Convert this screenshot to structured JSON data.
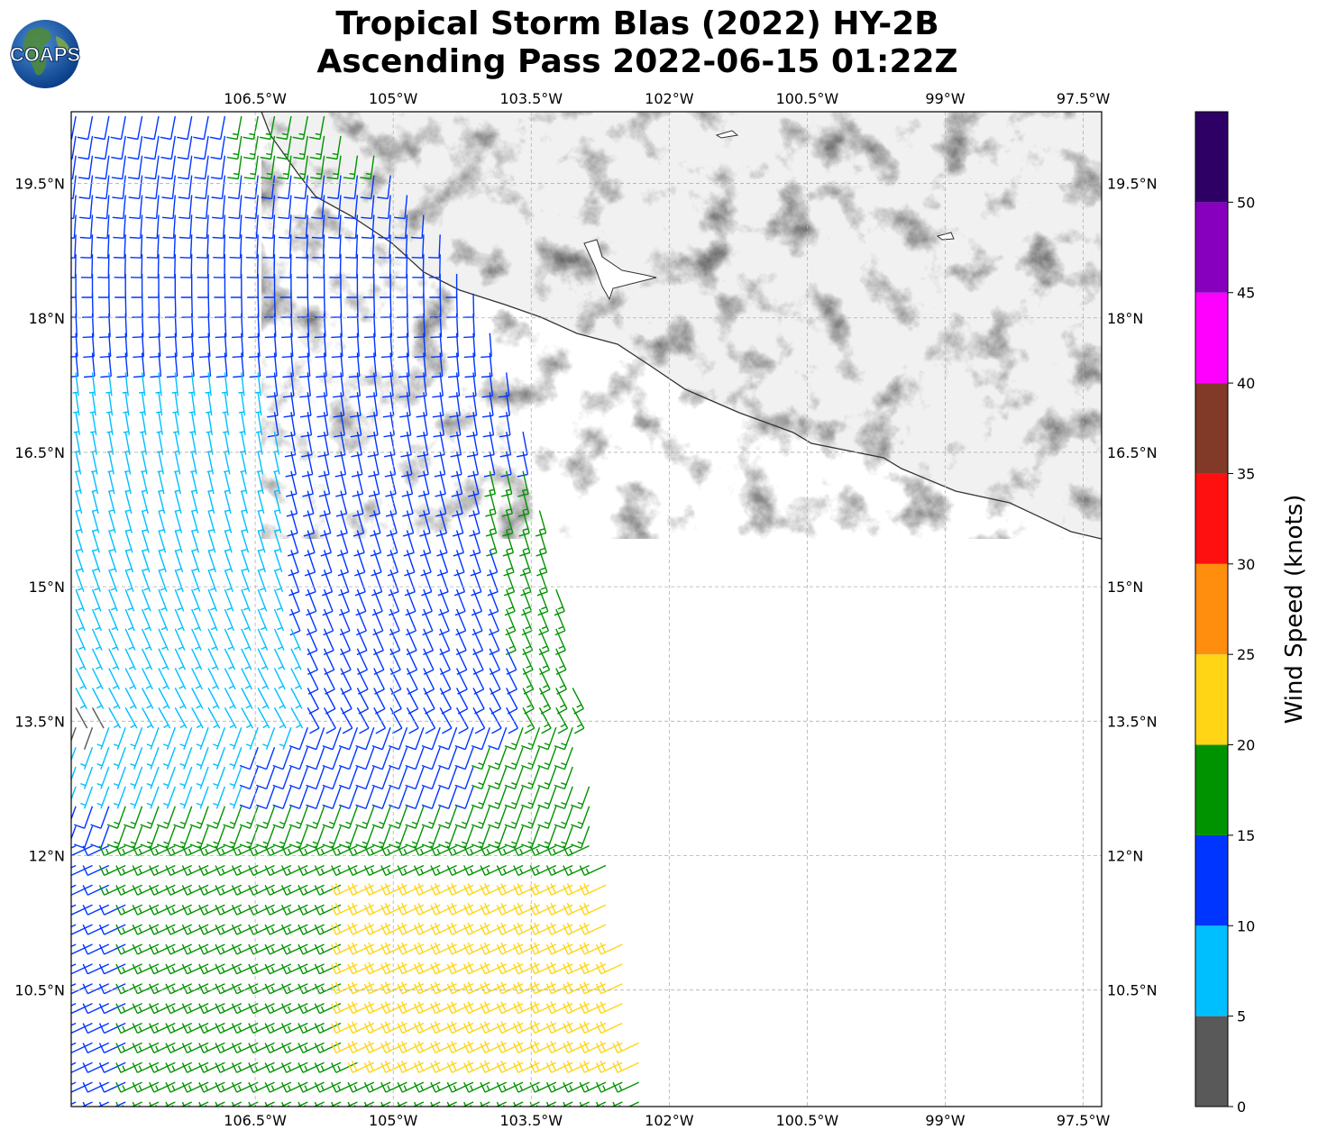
{
  "title": {
    "line1": "Tropical Storm Blas (2022) HY-2B",
    "line2": "Ascending Pass 2022-06-15 01:22Z"
  },
  "logo": {
    "text": "COAPS",
    "icon": "globe-logo-icon"
  },
  "map": {
    "extent_lon": [
      -108.5,
      -97.3
    ],
    "extent_lat": [
      9.2,
      20.3
    ],
    "lon_ticks": [
      "106.5°W",
      "105°W",
      "103.5°W",
      "102°W",
      "100.5°W",
      "99°W",
      "97.5°W"
    ],
    "lon_values": [
      -106.5,
      -105,
      -103.5,
      -102,
      -100.5,
      -99,
      -97.5
    ],
    "lat_ticks": [
      "19.5°N",
      "18°N",
      "16.5°N",
      "15°N",
      "13.5°N",
      "12°N",
      "10.5°N"
    ],
    "lat_values": [
      19.5,
      18,
      16.5,
      15,
      13.5,
      12,
      10.5
    ],
    "grid": true,
    "land_shading": "grayscale topography",
    "coastline_color": "#333333"
  },
  "colorbar": {
    "label": "Wind Speed (knots)",
    "bounds": [
      0,
      5,
      10,
      15,
      20,
      25,
      30,
      35,
      40,
      45,
      50,
      55
    ],
    "tick_labels": [
      "0",
      "5",
      "10",
      "15",
      "20",
      "25",
      "30",
      "35",
      "40",
      "45",
      "50"
    ],
    "colors": [
      "#595959",
      "#00bfff",
      "#0035ff",
      "#009300",
      "#ffd516",
      "#ff8e0e",
      "#ff1010",
      "#813a28",
      "#ff00ff",
      "#8700bd",
      "#2e0066"
    ]
  },
  "chart_data": {
    "type": "scatter",
    "title": "Tropical Storm Blas (2022) HY-2B Ascending Pass 2022-06-15 01:22Z",
    "xlabel": "",
    "ylabel": "",
    "xlim": [
      -108.5,
      -97.3
    ],
    "ylim": [
      9.2,
      20.3
    ],
    "value_label": "Wind Speed (knots)",
    "grid": true,
    "swath": {
      "west_edge_lon": -108.5,
      "east_edge_points": [
        [
          -105.7,
          20.3
        ],
        [
          -104.6,
          19.3
        ],
        [
          -103.9,
          17.8
        ],
        [
          -103.5,
          16.6
        ],
        [
          -103.2,
          14.8
        ],
        [
          -102.9,
          13.0
        ],
        [
          -102.6,
          11.5
        ],
        [
          -102.2,
          9.4
        ]
      ]
    },
    "wind_regions": [
      {
        "region": "north swath (18-20.3N)",
        "speed_range": [
          10,
          15
        ],
        "color": "#0035ff"
      },
      {
        "region": "north tip near coast",
        "speed_range": [
          15,
          20
        ],
        "color": "#009300"
      },
      {
        "region": "central-west (14-17.5N)",
        "speed_range": [
          5,
          10
        ],
        "color": "#00bfff"
      },
      {
        "region": "central-east (13.5-17N)",
        "speed_range": [
          10,
          15
        ],
        "color": "#0035ff"
      },
      {
        "region": "east edge (13.5-16N)",
        "speed_range": [
          15,
          20
        ],
        "color": "#009300"
      },
      {
        "region": "south (9.2-12.5N)",
        "speed_range": [
          15,
          20
        ],
        "color": "#009300"
      },
      {
        "region": "southeast (9.5-12.8N)",
        "speed_range": [
          20,
          25
        ],
        "color": "#ffd516"
      },
      {
        "region": "south-west edge",
        "speed_range": [
          10,
          15
        ],
        "color": "#0035ff"
      },
      {
        "region": "near 13.5N 108.3W",
        "speed_range": [
          0,
          5
        ],
        "color": "#595959"
      }
    ]
  }
}
